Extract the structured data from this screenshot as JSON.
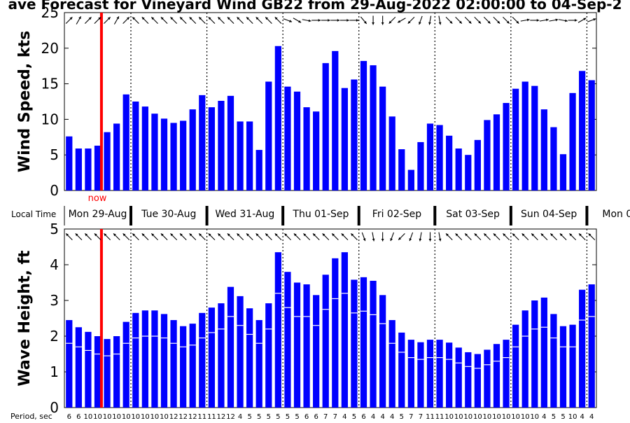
{
  "title": "ave Forecast for Vineyard Wind GB22 from 29-Aug-2022 02:00:00 to 04-Sep-2",
  "now_label": "now",
  "local_time_label": "Local Time",
  "day_labels": [
    "Mon 29-Aug",
    "Tue 30-Aug",
    "Wed 31-Aug",
    "Thu 01-Sep",
    "Fri 02-Sep",
    "Sat 03-Sep",
    "Sun 04-Sep",
    "Mon 0"
  ],
  "period_label": "Period, sec",
  "colors": {
    "bar": "#0000ff",
    "now_line": "#ff0000",
    "swell_line": "#ffffff",
    "axis": "#000000"
  },
  "chart_data": [
    {
      "type": "bar",
      "ylabel": "Wind Speed, kts",
      "ylim": [
        0,
        25
      ],
      "yticks": [
        0,
        5,
        10,
        15,
        20,
        25
      ],
      "values": [
        7.6,
        5.9,
        5.9,
        6.3,
        8.2,
        9.4,
        13.5,
        12.5,
        11.8,
        10.8,
        10.1,
        9.5,
        9.8,
        11.4,
        13.4,
        11.7,
        12.6,
        13.3,
        9.7,
        9.7,
        5.7,
        15.3,
        20.3,
        14.6,
        13.9,
        11.7,
        11.1,
        17.9,
        19.6,
        14.4,
        15.6,
        18.2,
        17.6,
        14.6,
        10.4,
        5.8,
        2.9,
        6.8,
        9.4,
        9.2,
        7.7,
        5.9,
        5.0,
        7.1,
        9.9,
        10.7,
        12.3,
        14.3,
        15.3,
        14.7,
        11.4,
        8.9,
        5.1,
        13.7,
        16.8,
        15.5
      ],
      "directions_deg": [
        45,
        30,
        45,
        45,
        45,
        30,
        45,
        315,
        315,
        315,
        315,
        315,
        315,
        315,
        315,
        315,
        315,
        315,
        315,
        315,
        315,
        315,
        315,
        110,
        120,
        100,
        90,
        90,
        90,
        90,
        90,
        140,
        180,
        180,
        225,
        240,
        225,
        200,
        190,
        170,
        135,
        135,
        135,
        135,
        135,
        135,
        135,
        135,
        80,
        90,
        80,
        80,
        100,
        90,
        60,
        70
      ]
    },
    {
      "type": "bar",
      "ylabel": "Wave Height, ft",
      "ylim": [
        0,
        5
      ],
      "yticks": [
        0,
        1,
        2,
        3,
        4,
        5
      ],
      "values": [
        2.45,
        2.25,
        2.12,
        2.0,
        1.92,
        2.0,
        2.4,
        2.65,
        2.72,
        2.72,
        2.62,
        2.45,
        2.28,
        2.35,
        2.65,
        2.8,
        2.92,
        3.38,
        3.12,
        2.78,
        2.45,
        2.92,
        4.35,
        3.8,
        3.5,
        3.45,
        3.15,
        3.72,
        4.18,
        4.35,
        3.58,
        3.65,
        3.55,
        3.15,
        2.45,
        2.1,
        1.9,
        1.83,
        1.9,
        1.9,
        1.82,
        1.68,
        1.55,
        1.5,
        1.62,
        1.78,
        1.9,
        2.32,
        2.72,
        3.0,
        3.08,
        2.62,
        2.28,
        2.32,
        3.3,
        3.45
      ],
      "swell_values": [
        1.8,
        1.7,
        1.6,
        1.5,
        1.45,
        1.5,
        1.8,
        1.95,
        2.0,
        2.0,
        1.95,
        1.8,
        1.7,
        1.75,
        1.95,
        2.1,
        2.2,
        2.55,
        2.3,
        2.05,
        1.8,
        2.2,
        3.2,
        2.8,
        2.55,
        2.55,
        2.3,
        2.75,
        3.05,
        3.2,
        2.65,
        2.7,
        2.6,
        2.35,
        1.8,
        1.55,
        1.4,
        1.35,
        1.4,
        1.4,
        1.35,
        1.25,
        1.15,
        1.1,
        1.2,
        1.3,
        1.4,
        1.7,
        2.0,
        2.2,
        2.25,
        1.95,
        1.7,
        1.7,
        2.45,
        2.55
      ],
      "periods": [
        "6",
        "6",
        "10",
        "10",
        "10",
        "10",
        "10",
        "10",
        "10",
        "10",
        "10",
        "12",
        "12",
        "12",
        "11",
        "11",
        "12",
        "12",
        "4",
        "5",
        "5",
        "5",
        "5",
        "5",
        "5",
        "6",
        "6",
        "7",
        "7",
        "4",
        "5",
        "6",
        "4",
        "4",
        "4",
        "5",
        "7",
        "7",
        "11",
        "11",
        "10",
        "10",
        "10",
        "10",
        "10",
        "10",
        "10",
        "10",
        "10",
        "10",
        "4",
        "5",
        "5",
        "10",
        "4",
        "4"
      ],
      "directions_deg": [
        315,
        315,
        315,
        315,
        315,
        315,
        315,
        315,
        315,
        315,
        315,
        315,
        315,
        315,
        315,
        315,
        315,
        315,
        315,
        315,
        315,
        315,
        315,
        315,
        315,
        315,
        315,
        315,
        315,
        315,
        315,
        160,
        170,
        180,
        200,
        225,
        200,
        190,
        180,
        170,
        315,
        315,
        315,
        315,
        315,
        315,
        315,
        315,
        315,
        315,
        315,
        315,
        315,
        315,
        315,
        315
      ]
    }
  ]
}
